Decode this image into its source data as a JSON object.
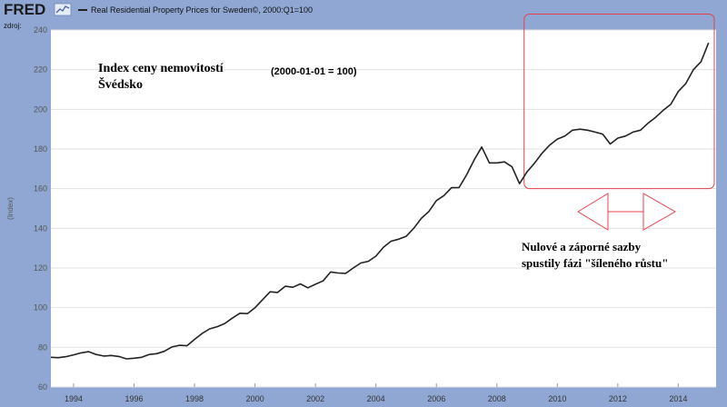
{
  "header": {
    "brand": "FRED",
    "brand_icon": "line-chart-icon",
    "source_label": "zdroj:",
    "series_title": "Real Residential Property Prices for Sweden©, 2000:Q1=100"
  },
  "annotations": {
    "title_line1": "Index ceny nemovitostí",
    "title_line2": "Švédsko",
    "base_note": "(2000-01-01 = 100)",
    "callout_line1": "Nulové a záporné sazby",
    "callout_line2": "spustily fázi \"šíleného růstu\"",
    "highlight_color": "#e8404a"
  },
  "chart_data": {
    "type": "line",
    "title": "Real Residential Property Prices for Sweden©, 2000:Q1=100",
    "xlabel": "",
    "ylabel": "(Index)",
    "xlim": [
      1993.25,
      2015.25
    ],
    "ylim": [
      60,
      240
    ],
    "x_ticks": [
      1994,
      1996,
      1998,
      2000,
      2002,
      2004,
      2006,
      2008,
      2010,
      2012,
      2014
    ],
    "y_ticks": [
      60,
      80,
      100,
      120,
      140,
      160,
      180,
      200,
      220,
      240
    ],
    "grid": true,
    "line_color": "#222222",
    "highlight_range": {
      "x": [
        2008.9,
        2015.25
      ],
      "y": [
        160,
        248
      ]
    },
    "series": [
      {
        "name": "Real Residential Property Prices for Sweden",
        "x": [
          1993.25,
          1993.5,
          1993.75,
          1994.0,
          1994.25,
          1994.5,
          1994.75,
          1995.0,
          1995.25,
          1995.5,
          1995.75,
          1996.0,
          1996.25,
          1996.5,
          1996.75,
          1997.0,
          1997.25,
          1997.5,
          1997.75,
          1998.0,
          1998.25,
          1998.5,
          1998.75,
          1999.0,
          1999.25,
          1999.5,
          1999.75,
          2000.0,
          2000.25,
          2000.5,
          2000.75,
          2001.0,
          2001.25,
          2001.5,
          2001.75,
          2002.0,
          2002.25,
          2002.5,
          2002.75,
          2003.0,
          2003.25,
          2003.5,
          2003.75,
          2004.0,
          2004.25,
          2004.5,
          2004.75,
          2005.0,
          2005.25,
          2005.5,
          2005.75,
          2006.0,
          2006.25,
          2006.5,
          2006.75,
          2007.0,
          2007.25,
          2007.5,
          2007.75,
          2008.0,
          2008.25,
          2008.5,
          2008.75,
          2009.0,
          2009.25,
          2009.5,
          2009.75,
          2010.0,
          2010.25,
          2010.5,
          2010.75,
          2011.0,
          2011.25,
          2011.5,
          2011.75,
          2012.0,
          2012.25,
          2012.5,
          2012.75,
          2013.0,
          2013.25,
          2013.5,
          2013.75,
          2014.0,
          2014.25,
          2014.5,
          2014.75,
          2015.0
        ],
        "values": [
          75,
          74.8,
          75.3,
          76.2,
          77.2,
          77.8,
          76.4,
          75.6,
          75.9,
          75.4,
          74.2,
          74.5,
          75.0,
          76.4,
          76.8,
          78.0,
          80.2,
          81.0,
          80.8,
          84.0,
          87.0,
          89.3,
          90.4,
          92.0,
          94.7,
          97.2,
          97.0,
          100.0,
          104.0,
          108.0,
          107.7,
          110.8,
          110.3,
          112.0,
          110.0,
          111.8,
          113.5,
          118.0,
          117.5,
          117.3,
          120.0,
          122.5,
          123.4,
          126.0,
          130.5,
          133.5,
          134.5,
          136.0,
          140.0,
          145.0,
          148.5,
          154.0,
          156.5,
          160.5,
          160.6,
          167.0,
          174.5,
          181.0,
          173.0,
          173.0,
          173.5,
          171.0,
          162.5,
          168.5,
          173.0,
          178.0,
          182.0,
          185.0,
          186.5,
          189.5,
          190.0,
          189.5,
          188.5,
          187.5,
          182.5,
          185.5,
          186.5,
          188.5,
          189.5,
          193.0,
          196.0,
          199.5,
          202.5,
          209.0,
          213.0,
          220.0,
          224.0,
          233.5
        ]
      }
    ]
  }
}
